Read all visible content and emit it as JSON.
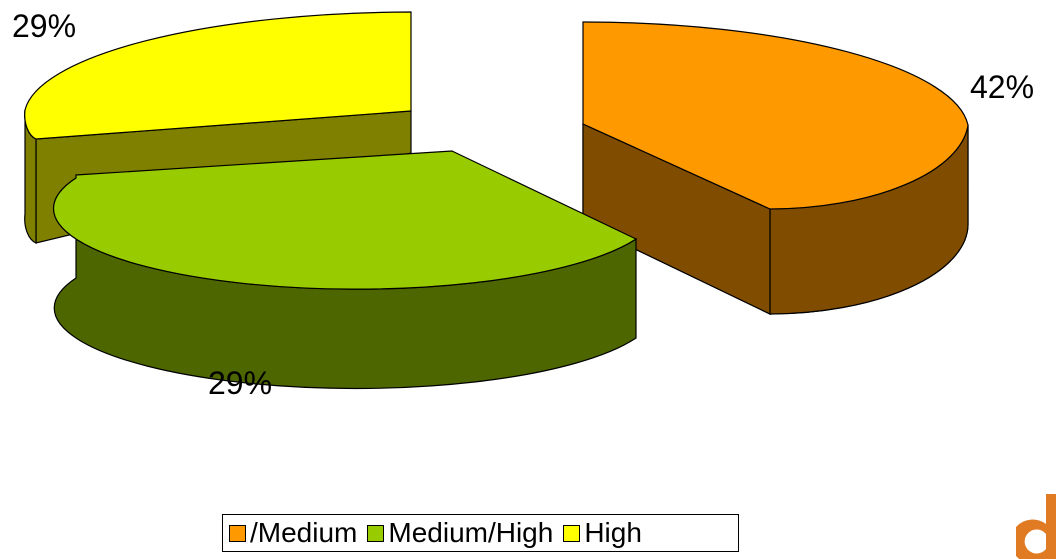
{
  "chart_data": {
    "type": "pie",
    "three_d": true,
    "exploded": true,
    "slices": [
      {
        "name": "/Medium",
        "value": 42,
        "label": "42%",
        "top_color": "#FF9900",
        "side_color": "#804D00"
      },
      {
        "name": "Medium/High",
        "value": 29,
        "label": "29%",
        "top_color": "#99CC00",
        "side_color": "#4D6600"
      },
      {
        "name": "High",
        "value": 29,
        "label": "29%",
        "top_color": "#FFFF00",
        "side_color": "#808000"
      }
    ],
    "legend": {
      "placement": "bottom",
      "entries": [
        "/Medium",
        "Medium/High",
        "High"
      ]
    }
  },
  "logo": {
    "name": "corner-logo",
    "color": "#E07B24"
  }
}
